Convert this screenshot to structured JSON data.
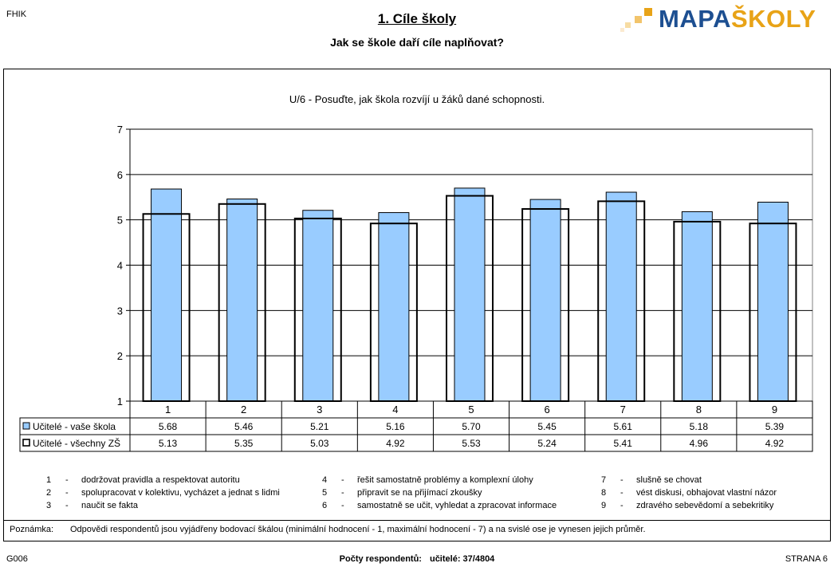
{
  "header": {
    "code": "FHIK",
    "title": "1. Cíle školy",
    "subtitle": "Jak se škole daří cíle naplňovat?",
    "logo_main": "MAPA",
    "logo_accent": "ŠKOLY"
  },
  "chart_data": {
    "type": "bar",
    "title": "U/6 - Posuďte, jak škola rozvíjí u žáků dané schopnosti.",
    "categories": [
      "1",
      "2",
      "3",
      "4",
      "5",
      "6",
      "7",
      "8",
      "9"
    ],
    "series": [
      {
        "name": "Učitelé - vaše škola",
        "values": [
          5.68,
          5.46,
          5.21,
          5.16,
          5.7,
          5.45,
          5.61,
          5.18,
          5.39
        ],
        "color": "#99ccff"
      },
      {
        "name": "Učitelé - všechny ZŠ",
        "values": [
          5.13,
          5.35,
          5.03,
          4.92,
          5.53,
          5.24,
          5.41,
          4.96,
          4.92
        ],
        "color": "#ffffff"
      }
    ],
    "table_values": [
      [
        "5.68",
        "5.46",
        "5.21",
        "5.16",
        "5.70",
        "5.45",
        "5.61",
        "5.18",
        "5.39"
      ],
      [
        "5.13",
        "5.35",
        "5.03",
        "4.92",
        "5.53",
        "5.24",
        "5.41",
        "4.96",
        "4.92"
      ]
    ],
    "yticks": [
      "1",
      "2",
      "3",
      "4",
      "5",
      "6",
      "7"
    ],
    "ylim": [
      1,
      7
    ],
    "grid": true,
    "legend": "data table, left"
  },
  "notes": [
    {
      "num": "1",
      "text": "dodržovat pravidla a respektovat autoritu"
    },
    {
      "num": "2",
      "text": "spolupracovat v kolektivu, vycházet a jednat s lidmi"
    },
    {
      "num": "3",
      "text": "naučit se fakta"
    },
    {
      "num": "4",
      "text": "řešit samostatně problémy a komplexní úlohy"
    },
    {
      "num": "5",
      "text": "připravit se na přijímací zkoušky"
    },
    {
      "num": "6",
      "text": "samostatně se učit, vyhledat a zpracovat informace"
    },
    {
      "num": "7",
      "text": "slušně se chovat"
    },
    {
      "num": "8",
      "text": "vést diskusi, obhajovat vlastní názor"
    },
    {
      "num": "9",
      "text": "zdravého sebevědomí a sebekritiky"
    }
  ],
  "note": {
    "label": "Poznámka:",
    "text": "Odpovědi respondentů jsou vyjádřeny bodovací škálou (minimální hodnocení - 1, maximální hodnocení - 7) a na svislé ose je vynesen jejich průměr."
  },
  "footer": {
    "left": "G006",
    "center_label": "Počty respondentů:",
    "center_value": "učitelé: 37/4804",
    "right": "STRANA 6"
  }
}
